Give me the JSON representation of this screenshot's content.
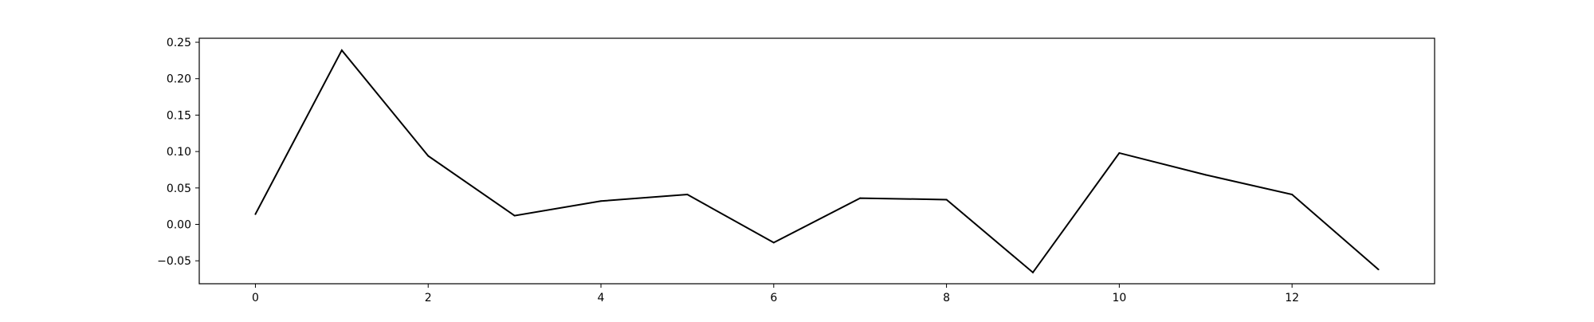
{
  "chart_data": {
    "type": "line",
    "title": "",
    "xlabel": "",
    "ylabel": "",
    "x": [
      0,
      1,
      2,
      3,
      4,
      5,
      6,
      7,
      8,
      9,
      10,
      11,
      12,
      13
    ],
    "series": [
      {
        "values": [
          0.014,
          0.239,
          0.094,
          0.012,
          0.032,
          0.041,
          -0.025,
          0.036,
          0.034,
          -0.066,
          0.098,
          0.068,
          0.041,
          -0.062
        ],
        "color": "#000000"
      }
    ],
    "xlim": [
      -0.65,
      13.65
    ],
    "ylim": [
      -0.0815,
      0.2555
    ],
    "xticks": [
      0,
      2,
      4,
      6,
      8,
      10,
      12
    ],
    "xtick_labels": [
      "0",
      "2",
      "4",
      "6",
      "8",
      "10",
      "12"
    ],
    "yticks": [
      -0.05,
      0.0,
      0.05,
      0.1,
      0.15,
      0.2,
      0.25
    ],
    "ytick_labels": [
      "−0.05",
      "0.00",
      "0.05",
      "0.10",
      "0.15",
      "0.20",
      "0.25"
    ],
    "grid": false,
    "legend": "none"
  }
}
